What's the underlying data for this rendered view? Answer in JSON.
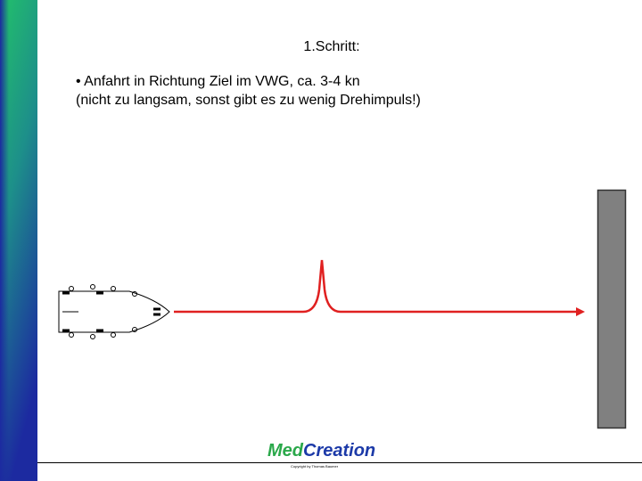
{
  "slide": {
    "title": "1.Schritt:",
    "bullet": {
      "line1": "• Anfahrt in Richtung Ziel im VWG, ca. 3-4 kn",
      "line2": "(nicht zu langsam, sonst gibt es zu wenig Drehimpuls!)"
    },
    "logo": {
      "part1": "Med",
      "part2": "Creation"
    },
    "copyright": "Copyright by Thomas Baumer"
  }
}
